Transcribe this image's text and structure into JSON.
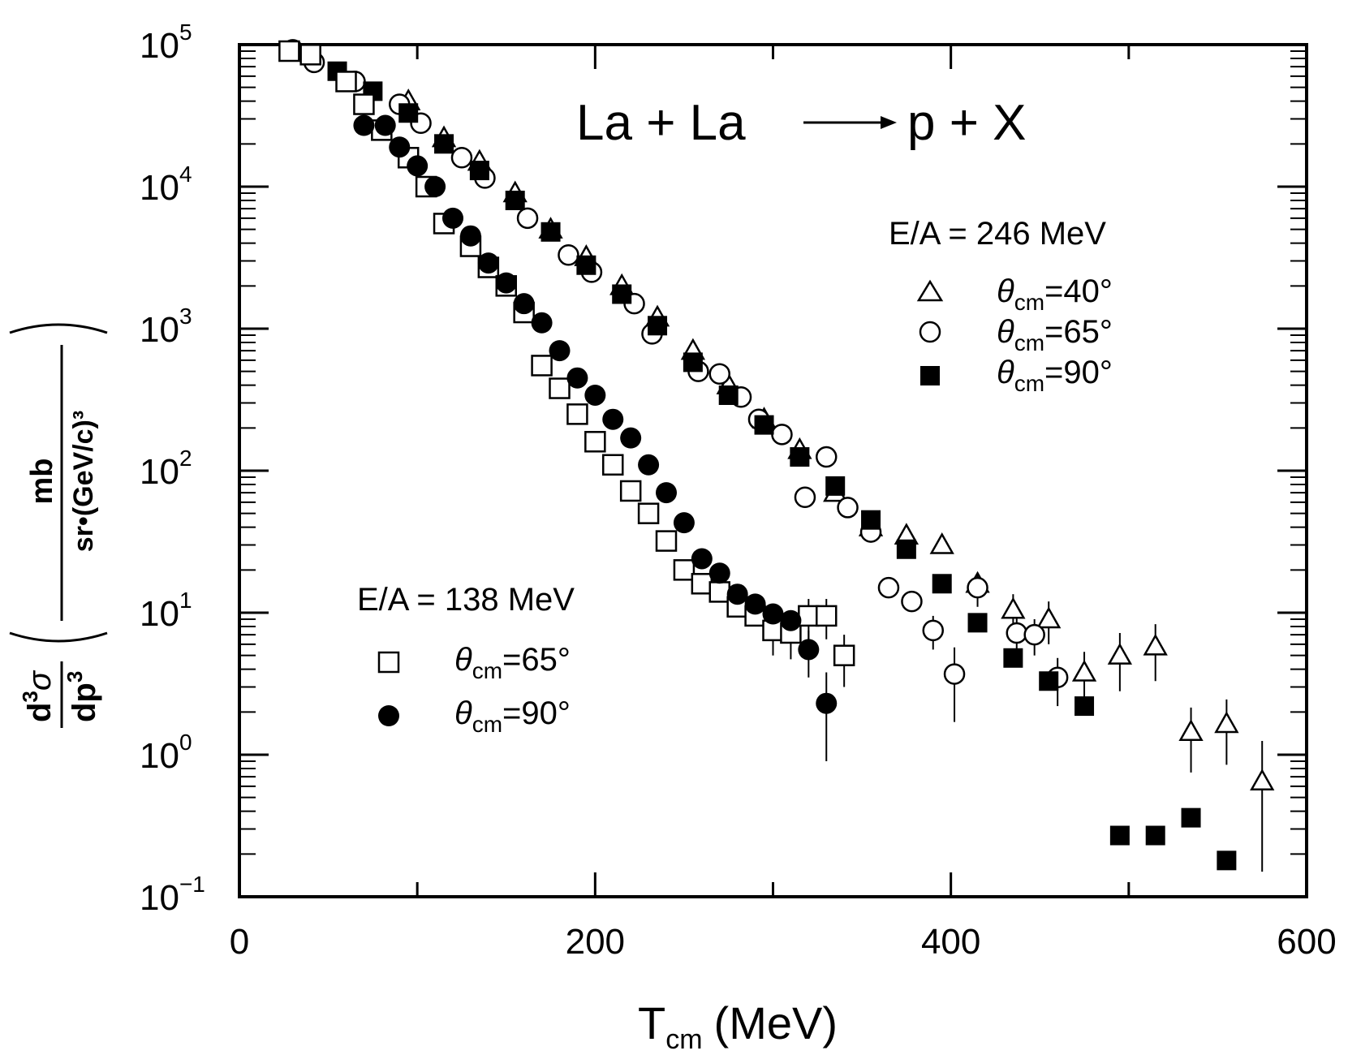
{
  "chart_data": {
    "type": "scatter",
    "title": "La + La → p + X",
    "title_parts": {
      "left": "La + La",
      "right": "p + X"
    },
    "xlabel": {
      "main": "T",
      "sub": "cm",
      "unit": "(MeV)"
    },
    "ylabel": {
      "lhs_num": "d",
      "lhs_num_sup": "3",
      "lhs_num_sym": "σ",
      "lhs_den": "dp",
      "lhs_den_sup": "3",
      "unit_num": "mb",
      "unit_den": "sr•(GeV/c)³"
    },
    "x_range": [
      0,
      600
    ],
    "y_range": [
      0.1,
      100000
    ],
    "y_scale": "log",
    "x_ticks": [
      {
        "value": 0,
        "label": "0"
      },
      {
        "value": 200,
        "label": "200"
      },
      {
        "value": 400,
        "label": "400"
      },
      {
        "value": 600,
        "label": "600"
      }
    ],
    "y_ticks": [
      {
        "exp": -1,
        "base": "10",
        "sup": "−1"
      },
      {
        "exp": 0,
        "base": "10",
        "sup": "0"
      },
      {
        "exp": 1,
        "base": "10",
        "sup": "1"
      },
      {
        "exp": 2,
        "base": "10",
        "sup": "2"
      },
      {
        "exp": 3,
        "base": "10",
        "sup": "3"
      },
      {
        "exp": 4,
        "base": "10",
        "sup": "4"
      },
      {
        "exp": 5,
        "base": "10",
        "sup": "5"
      }
    ],
    "legend_groups": [
      {
        "header": "E/A = 246 MeV",
        "position": "top-right",
        "entries": [
          {
            "series": 0,
            "marker": "open-triangle",
            "label_var": "θ",
            "label_sub": "cm",
            "label_val": "=40°"
          },
          {
            "series": 1,
            "marker": "open-circle",
            "label_var": "θ",
            "label_sub": "cm",
            "label_val": "=65°"
          },
          {
            "series": 2,
            "marker": "filled-square",
            "label_var": "θ",
            "label_sub": "cm",
            "label_val": "=90°"
          }
        ]
      },
      {
        "header": "E/A = 138 MeV",
        "position": "bottom-left",
        "entries": [
          {
            "series": 3,
            "marker": "open-square",
            "label_var": "θ",
            "label_sub": "cm",
            "label_val": "=65°"
          },
          {
            "series": 4,
            "marker": "filled-circle",
            "label_var": "θ",
            "label_sub": "cm",
            "label_val": "=90°"
          }
        ]
      }
    ],
    "series": [
      {
        "energy": "E/A = 246 MeV",
        "angle": "θcm=40°",
        "marker": "open-triangle",
        "points": [
          {
            "x": 95,
            "y": 40000
          },
          {
            "x": 115,
            "y": 22000
          },
          {
            "x": 135,
            "y": 15000
          },
          {
            "x": 155,
            "y": 9000
          },
          {
            "x": 175,
            "y": 5000
          },
          {
            "x": 195,
            "y": 3200
          },
          {
            "x": 215,
            "y": 2000
          },
          {
            "x": 235,
            "y": 1200
          },
          {
            "x": 255,
            "y": 700
          },
          {
            "x": 275,
            "y": 400
          },
          {
            "x": 295,
            "y": 230
          },
          {
            "x": 315,
            "y": 140
          },
          {
            "x": 335,
            "y": 70
          },
          {
            "x": 355,
            "y": 40
          },
          {
            "x": 375,
            "y": 35
          },
          {
            "x": 395,
            "y": 30
          },
          {
            "x": 415,
            "y": 16,
            "err": [
              3,
              3
            ]
          },
          {
            "x": 435,
            "y": 10.5,
            "err": [
              3,
              3
            ]
          },
          {
            "x": 455,
            "y": 9,
            "err": [
              3,
              3
            ]
          },
          {
            "x": 475,
            "y": 3.8,
            "err": [
              1.5,
              1.5
            ]
          },
          {
            "x": 495,
            "y": 5,
            "err": [
              2.2,
              2.2
            ]
          },
          {
            "x": 515,
            "y": 5.8,
            "err": [
              2.5,
              2.5
            ]
          },
          {
            "x": 535,
            "y": 1.45,
            "err": [
              0.7,
              0.7
            ]
          },
          {
            "x": 555,
            "y": 1.65,
            "err": [
              0.8,
              0.8
            ]
          },
          {
            "x": 575,
            "y": 0.65,
            "err": [
              0.5,
              0.6
            ]
          }
        ]
      },
      {
        "energy": "E/A = 246 MeV",
        "angle": "θcm=65°",
        "marker": "open-circle",
        "points": [
          {
            "x": 30,
            "y": 92000
          },
          {
            "x": 42,
            "y": 75000
          },
          {
            "x": 65,
            "y": 55000
          },
          {
            "x": 90,
            "y": 38000
          },
          {
            "x": 102,
            "y": 28000
          },
          {
            "x": 125,
            "y": 16000
          },
          {
            "x": 138,
            "y": 11500
          },
          {
            "x": 162,
            "y": 6000
          },
          {
            "x": 185,
            "y": 3300
          },
          {
            "x": 198,
            "y": 2500
          },
          {
            "x": 222,
            "y": 1500
          },
          {
            "x": 232,
            "y": 920
          },
          {
            "x": 258,
            "y": 500
          },
          {
            "x": 270,
            "y": 480
          },
          {
            "x": 282,
            "y": 330
          },
          {
            "x": 292,
            "y": 230
          },
          {
            "x": 305,
            "y": 180
          },
          {
            "x": 318,
            "y": 65
          },
          {
            "x": 330,
            "y": 125
          },
          {
            "x": 342,
            "y": 55
          },
          {
            "x": 355,
            "y": 37
          },
          {
            "x": 365,
            "y": 15
          },
          {
            "x": 378,
            "y": 12
          },
          {
            "x": 390,
            "y": 7.5,
            "err": [
              2,
              2
            ]
          },
          {
            "x": 402,
            "y": 3.7,
            "err": [
              2,
              2
            ]
          },
          {
            "x": 415,
            "y": 15,
            "err": [
              4,
              4
            ]
          },
          {
            "x": 437,
            "y": 7.2,
            "err": [
              2,
              2
            ]
          },
          {
            "x": 447,
            "y": 7.0,
            "err": [
              2,
              2
            ]
          },
          {
            "x": 460,
            "y": 3.5,
            "err": [
              1.3,
              1.3
            ]
          }
        ]
      },
      {
        "energy": "E/A = 246 MeV",
        "angle": "θcm=90°",
        "marker": "filled-square",
        "points": [
          {
            "x": 55,
            "y": 65000
          },
          {
            "x": 75,
            "y": 47000
          },
          {
            "x": 95,
            "y": 33000
          },
          {
            "x": 115,
            "y": 20000
          },
          {
            "x": 135,
            "y": 13000
          },
          {
            "x": 155,
            "y": 8000
          },
          {
            "x": 175,
            "y": 4800
          },
          {
            "x": 195,
            "y": 2800
          },
          {
            "x": 215,
            "y": 1750
          },
          {
            "x": 235,
            "y": 1050
          },
          {
            "x": 255,
            "y": 580
          },
          {
            "x": 275,
            "y": 340
          },
          {
            "x": 295,
            "y": 210
          },
          {
            "x": 315,
            "y": 125
          },
          {
            "x": 335,
            "y": 78
          },
          {
            "x": 355,
            "y": 45
          },
          {
            "x": 375,
            "y": 28
          },
          {
            "x": 395,
            "y": 16
          },
          {
            "x": 415,
            "y": 8.5
          },
          {
            "x": 435,
            "y": 4.8
          },
          {
            "x": 455,
            "y": 3.3
          },
          {
            "x": 475,
            "y": 2.2
          },
          {
            "x": 495,
            "y": 0.27
          },
          {
            "x": 515,
            "y": 0.27
          },
          {
            "x": 535,
            "y": 0.36
          },
          {
            "x": 555,
            "y": 0.18
          }
        ]
      },
      {
        "energy": "E/A = 138 MeV",
        "angle": "θcm=65°",
        "marker": "open-square",
        "points": [
          {
            "x": 28,
            "y": 90000
          },
          {
            "x": 40,
            "y": 85000
          },
          {
            "x": 60,
            "y": 55000
          },
          {
            "x": 70,
            "y": 38000
          },
          {
            "x": 80,
            "y": 25000
          },
          {
            "x": 95,
            "y": 16000
          },
          {
            "x": 105,
            "y": 10000
          },
          {
            "x": 115,
            "y": 5500
          },
          {
            "x": 130,
            "y": 3800
          },
          {
            "x": 140,
            "y": 2700
          },
          {
            "x": 150,
            "y": 2000
          },
          {
            "x": 160,
            "y": 1300
          },
          {
            "x": 170,
            "y": 550
          },
          {
            "x": 180,
            "y": 380
          },
          {
            "x": 190,
            "y": 250
          },
          {
            "x": 200,
            "y": 160
          },
          {
            "x": 210,
            "y": 110
          },
          {
            "x": 220,
            "y": 72
          },
          {
            "x": 230,
            "y": 50
          },
          {
            "x": 240,
            "y": 32
          },
          {
            "x": 250,
            "y": 20
          },
          {
            "x": 260,
            "y": 16
          },
          {
            "x": 270,
            "y": 14
          },
          {
            "x": 280,
            "y": 11
          },
          {
            "x": 290,
            "y": 9.5
          },
          {
            "x": 300,
            "y": 7.5,
            "err": [
              2.5,
              2.5
            ]
          },
          {
            "x": 310,
            "y": 7.2,
            "err": [
              2.5,
              2.5
            ]
          },
          {
            "x": 320,
            "y": 9.5,
            "err": [
              3,
              3
            ]
          },
          {
            "x": 330,
            "y": 9.5,
            "err": [
              3,
              3
            ]
          },
          {
            "x": 340,
            "y": 5,
            "err": [
              2,
              2
            ]
          }
        ]
      },
      {
        "energy": "E/A = 138 MeV",
        "angle": "θcm=90°",
        "marker": "filled-circle",
        "points": [
          {
            "x": 70,
            "y": 27000
          },
          {
            "x": 82,
            "y": 27000
          },
          {
            "x": 90,
            "y": 19000
          },
          {
            "x": 100,
            "y": 14000
          },
          {
            "x": 110,
            "y": 10000
          },
          {
            "x": 120,
            "y": 6000
          },
          {
            "x": 130,
            "y": 4500
          },
          {
            "x": 140,
            "y": 2900
          },
          {
            "x": 150,
            "y": 2100
          },
          {
            "x": 160,
            "y": 1500
          },
          {
            "x": 170,
            "y": 1100
          },
          {
            "x": 180,
            "y": 700
          },
          {
            "x": 190,
            "y": 450
          },
          {
            "x": 200,
            "y": 340
          },
          {
            "x": 210,
            "y": 230
          },
          {
            "x": 220,
            "y": 170
          },
          {
            "x": 230,
            "y": 110
          },
          {
            "x": 240,
            "y": 70
          },
          {
            "x": 250,
            "y": 43
          },
          {
            "x": 260,
            "y": 24
          },
          {
            "x": 270,
            "y": 19
          },
          {
            "x": 280,
            "y": 13.5
          },
          {
            "x": 290,
            "y": 11.5
          },
          {
            "x": 300,
            "y": 9.8
          },
          {
            "x": 310,
            "y": 8.8
          },
          {
            "x": 320,
            "y": 5.5,
            "err": [
              2,
              2
            ]
          },
          {
            "x": 330,
            "y": 2.3,
            "err": [
              1.4,
              1.5
            ]
          }
        ]
      }
    ]
  }
}
